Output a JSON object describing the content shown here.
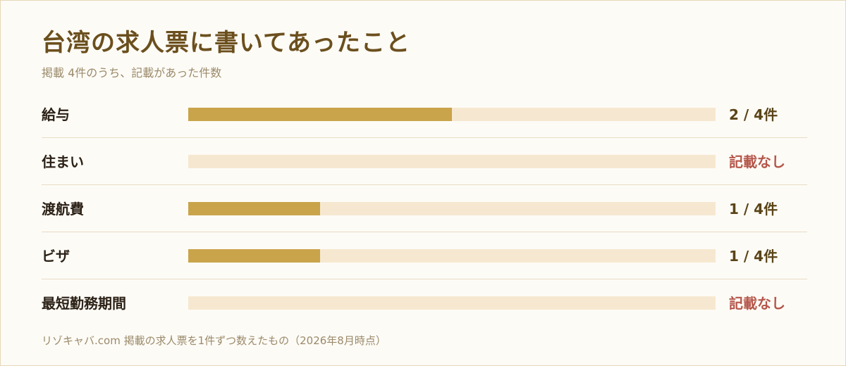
{
  "title": "台湾の求人票に書いてあったこと",
  "subtitle": "掲載 4件のうち、記載があった件数",
  "footnote": "リゾキャバ.com 掲載の求人票を1件ずつ数えたもの（2026年8月時点）",
  "colors": {
    "fill": "#c9a44a",
    "track": "#f6e8d0",
    "missing": "#b5564a",
    "value": "#5a4417"
  },
  "chart_data": {
    "type": "bar",
    "orientation": "horizontal",
    "title": "台湾の求人票に書いてあったこと",
    "subtitle": "掲載 4件のうち、記載があった件数",
    "total": 4,
    "xlim": [
      0,
      4
    ],
    "grid": false,
    "categories": [
      "給与",
      "住まい",
      "渡航費",
      "ビザ",
      "最短勤務期間"
    ],
    "values": [
      2,
      0,
      1,
      1,
      0
    ],
    "labels": [
      "2 / 4件",
      "記載なし",
      "1 / 4件",
      "1 / 4件",
      "記載なし"
    ]
  }
}
